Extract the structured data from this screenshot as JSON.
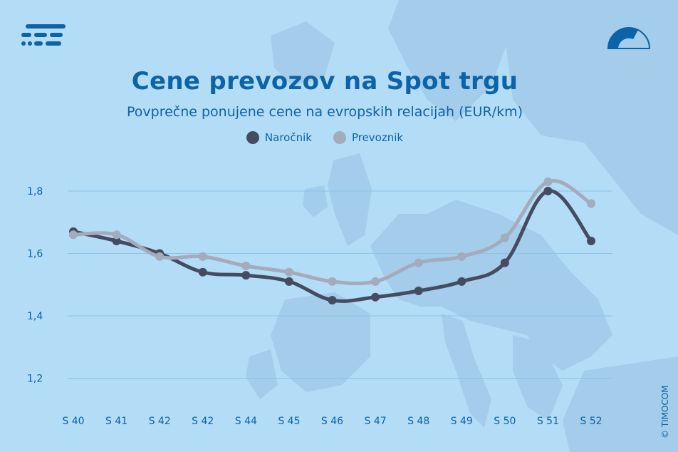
{
  "title": "Cene prevozov na Spot trgu",
  "subtitle": "Povprečne ponujene cene na evropskih relacijah (EUR/km)",
  "copyright": "© TIMOCOM",
  "colors": {
    "background": "#b3dcf6",
    "accent": "#0d63a8",
    "map": "#a3cdea",
    "gridline": "#8ec3e6"
  },
  "legend": [
    {
      "label": "Naročnik",
      "color": "#454c62"
    },
    {
      "label": "Prevoznik",
      "color": "#a4abbc"
    }
  ],
  "chart_data": {
    "type": "line",
    "title": "Cene prevozov na Spot trgu",
    "subtitle": "Povprečne ponujene cene na evropskih relacijah (EUR/km)",
    "categories": [
      "S 40",
      "S 41",
      "S 42",
      "S 42",
      "S 44",
      "S 45",
      "S 46",
      "S 47",
      "S 48",
      "S 49",
      "S 50",
      "S 51",
      "S 52"
    ],
    "series": [
      {
        "name": "Naročnik",
        "color": "#454c62",
        "values": [
          1.67,
          1.64,
          1.6,
          1.54,
          1.53,
          1.51,
          1.45,
          1.46,
          1.48,
          1.51,
          1.57,
          1.8,
          1.64
        ]
      },
      {
        "name": "Prevoznik",
        "color": "#a4abbc",
        "values": [
          1.66,
          1.66,
          1.59,
          1.59,
          1.56,
          1.54,
          1.51,
          1.51,
          1.57,
          1.59,
          1.65,
          1.83,
          1.76
        ]
      }
    ],
    "yticks": [
      "1,2",
      "1,4",
      "1,6",
      "1,8"
    ],
    "ytick_values": [
      1.2,
      1.4,
      1.6,
      1.8
    ],
    "ylim": [
      1.17,
      1.86
    ],
    "grid": true,
    "legend_position": "top-center"
  }
}
